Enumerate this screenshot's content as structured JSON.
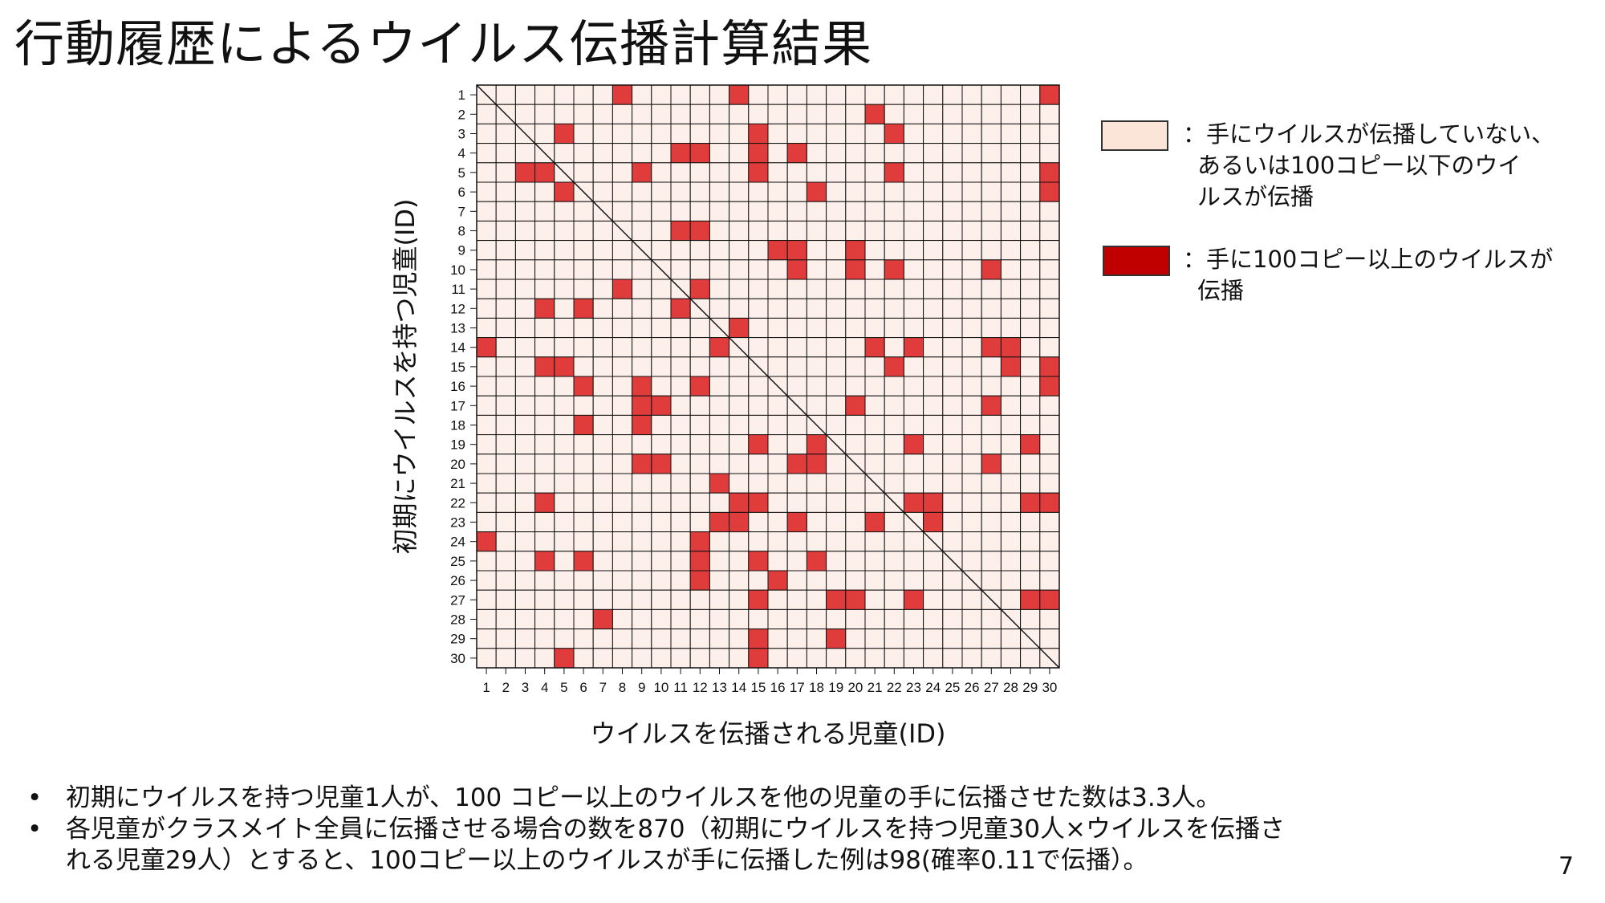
{
  "slide": {
    "title": "行動履歴によるウイルス伝播計算結果",
    "page_number": "7"
  },
  "legend": {
    "low": {
      "color": "#fbe5d8",
      "lines": [
        "：手にウイルスが伝播していない、",
        "あるいは100コピー以下のウイ",
        "ルスが伝播"
      ]
    },
    "high": {
      "color": "#c00000",
      "lines": [
        "：手に100コピー以上のウイルスが",
        "伝播"
      ]
    }
  },
  "bullets": [
    {
      "symbol": "•",
      "lines": [
        "初期にウイルスを持つ児童1人が、100 コピー以上のウイルスを他の児童の手に伝播させた数は3.3人。"
      ]
    },
    {
      "symbol": "•",
      "lines": [
        "各児童がクラスメイト全員に伝播させる場合の数を870（初期にウイルスを持つ児童30人×ウイルスを伝播さ",
        "れる児童29人）とすると、100コピー以上のウイルスが手に伝播した例は98(確率0.11で伝播）。"
      ]
    }
  ],
  "chart_data": {
    "type": "heatmap",
    "xlabel": "ウイルスを伝播される児童(ID)",
    "ylabel": "初期にウイルスを持つ児童(ID)",
    "x_ids": [
      1,
      2,
      3,
      4,
      5,
      6,
      7,
      8,
      9,
      10,
      11,
      12,
      13,
      14,
      15,
      16,
      17,
      18,
      19,
      20,
      21,
      22,
      23,
      24,
      25,
      26,
      27,
      28,
      29,
      30
    ],
    "y_ids": [
      1,
      2,
      3,
      4,
      5,
      6,
      7,
      8,
      9,
      10,
      11,
      12,
      13,
      14,
      15,
      16,
      17,
      18,
      19,
      20,
      21,
      22,
      23,
      24,
      25,
      26,
      27,
      28,
      29,
      30
    ],
    "colors": {
      "low": "#fdf0ea",
      "high": "#e03c3c",
      "grid": "#111111"
    },
    "diagonal_line": true,
    "high_cells": [
      [
        1,
        8
      ],
      [
        1,
        14
      ],
      [
        1,
        30
      ],
      [
        2,
        21
      ],
      [
        3,
        5
      ],
      [
        3,
        15
      ],
      [
        3,
        22
      ],
      [
        4,
        11
      ],
      [
        4,
        12
      ],
      [
        4,
        15
      ],
      [
        4,
        17
      ],
      [
        5,
        3
      ],
      [
        5,
        4
      ],
      [
        5,
        9
      ],
      [
        5,
        15
      ],
      [
        5,
        22
      ],
      [
        5,
        30
      ],
      [
        6,
        5
      ],
      [
        6,
        18
      ],
      [
        6,
        30
      ],
      [
        8,
        11
      ],
      [
        8,
        12
      ],
      [
        9,
        16
      ],
      [
        9,
        17
      ],
      [
        9,
        20
      ],
      [
        10,
        17
      ],
      [
        10,
        20
      ],
      [
        10,
        22
      ],
      [
        10,
        27
      ],
      [
        11,
        8
      ],
      [
        11,
        12
      ],
      [
        12,
        4
      ],
      [
        12,
        6
      ],
      [
        12,
        11
      ],
      [
        13,
        14
      ],
      [
        14,
        1
      ],
      [
        14,
        13
      ],
      [
        14,
        21
      ],
      [
        14,
        23
      ],
      [
        14,
        27
      ],
      [
        14,
        28
      ],
      [
        15,
        4
      ],
      [
        15,
        5
      ],
      [
        15,
        22
      ],
      [
        15,
        28
      ],
      [
        15,
        30
      ],
      [
        16,
        6
      ],
      [
        16,
        9
      ],
      [
        16,
        12
      ],
      [
        16,
        30
      ],
      [
        17,
        9
      ],
      [
        17,
        10
      ],
      [
        17,
        20
      ],
      [
        17,
        27
      ],
      [
        18,
        6
      ],
      [
        18,
        9
      ],
      [
        19,
        15
      ],
      [
        19,
        18
      ],
      [
        19,
        23
      ],
      [
        19,
        29
      ],
      [
        20,
        9
      ],
      [
        20,
        10
      ],
      [
        20,
        17
      ],
      [
        20,
        18
      ],
      [
        20,
        27
      ],
      [
        21,
        13
      ],
      [
        22,
        4
      ],
      [
        22,
        14
      ],
      [
        22,
        15
      ],
      [
        22,
        23
      ],
      [
        22,
        24
      ],
      [
        22,
        29
      ],
      [
        22,
        30
      ],
      [
        23,
        13
      ],
      [
        23,
        14
      ],
      [
        23,
        17
      ],
      [
        23,
        21
      ],
      [
        23,
        24
      ],
      [
        24,
        1
      ],
      [
        24,
        12
      ],
      [
        25,
        4
      ],
      [
        25,
        6
      ],
      [
        25,
        12
      ],
      [
        25,
        15
      ],
      [
        25,
        18
      ],
      [
        26,
        12
      ],
      [
        26,
        16
      ],
      [
        27,
        15
      ],
      [
        27,
        19
      ],
      [
        27,
        20
      ],
      [
        27,
        23
      ],
      [
        27,
        29
      ],
      [
        27,
        30
      ],
      [
        28,
        7
      ],
      [
        29,
        15
      ],
      [
        29,
        19
      ],
      [
        30,
        5
      ],
      [
        30,
        15
      ]
    ]
  }
}
